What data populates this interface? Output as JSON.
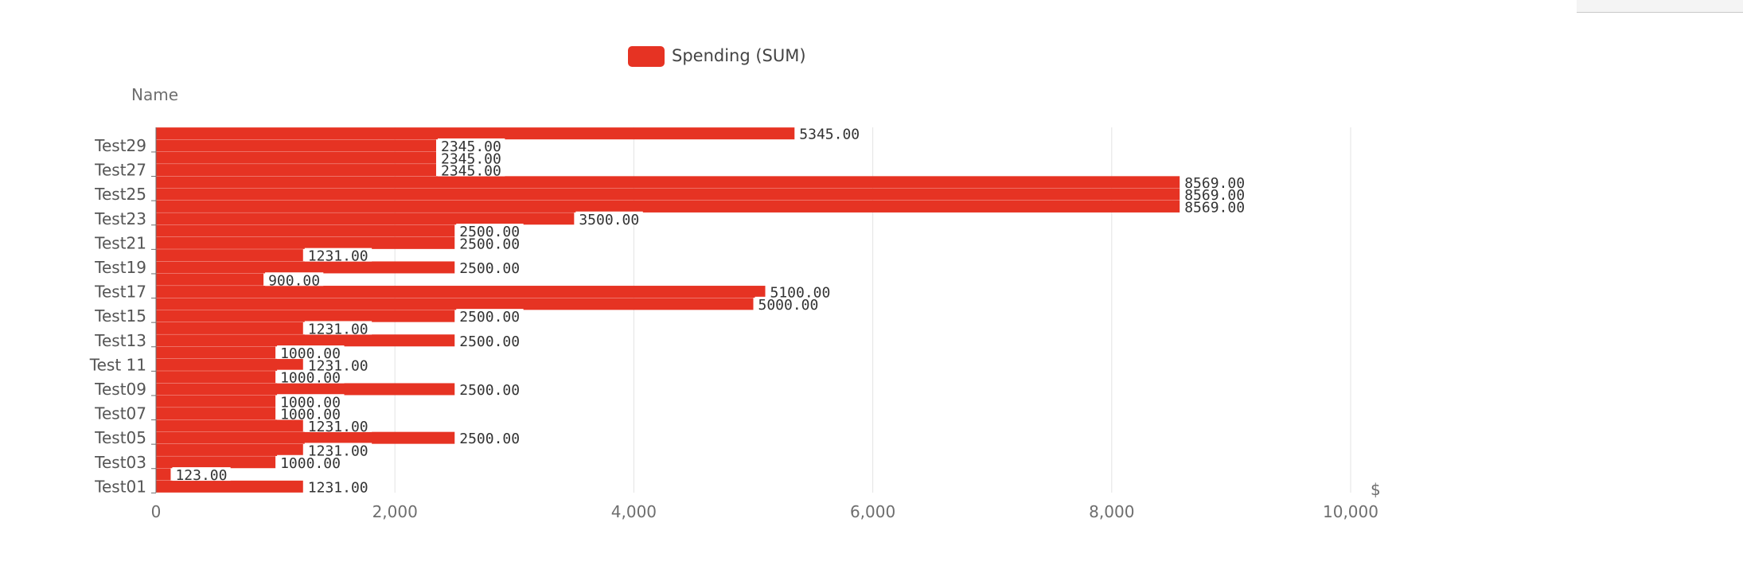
{
  "chart_data": {
    "type": "bar",
    "orientation": "horizontal",
    "legend": {
      "position": "top",
      "items": [
        {
          "name": "Spending (SUM)",
          "color": "#e63323"
        }
      ]
    },
    "xlabel": "$",
    "ylabel": "Name",
    "xlim": [
      0,
      10000
    ],
    "x_ticks": [
      "0",
      "2,000",
      "4,000",
      "6,000",
      "8,000",
      "10,000"
    ],
    "grid": true,
    "category_labels_shown": [
      "Test01",
      "Test03",
      "Test05",
      "Test07",
      "Test09",
      "Test 11",
      "Test13",
      "Test15",
      "Test17",
      "Test19",
      "Test21",
      "Test23",
      "Test25",
      "Test27",
      "Test29"
    ],
    "series": [
      {
        "name": "Spending (SUM)",
        "color": "#e63323",
        "values": [
          1231,
          123,
          1000,
          1231,
          2500,
          1231,
          1000,
          1000,
          2500,
          1000,
          1231,
          1000,
          2500,
          1231,
          2500,
          5000,
          5100,
          900,
          2500,
          1231,
          2500,
          2500,
          3500,
          8569,
          8569,
          8569,
          2345,
          2345,
          2345,
          5345
        ],
        "value_labels": [
          "1231.00",
          "123.00",
          "1000.00",
          "1231.00",
          "2500.00",
          "1231.00",
          "1000.00",
          "1000.00",
          "2500.00",
          "1000.00",
          "1231.00",
          "1000.00",
          "2500.00",
          "1231.00",
          "2500.00",
          "5000.00",
          "5100.00",
          "900.00",
          "2500.00",
          "1231.00",
          "2500.00",
          "2500.00",
          "3500.00",
          "8569.00",
          "8569.00",
          "8569.00",
          "2345.00",
          "2345.00",
          "2345.00",
          "5345.00"
        ]
      }
    ]
  }
}
